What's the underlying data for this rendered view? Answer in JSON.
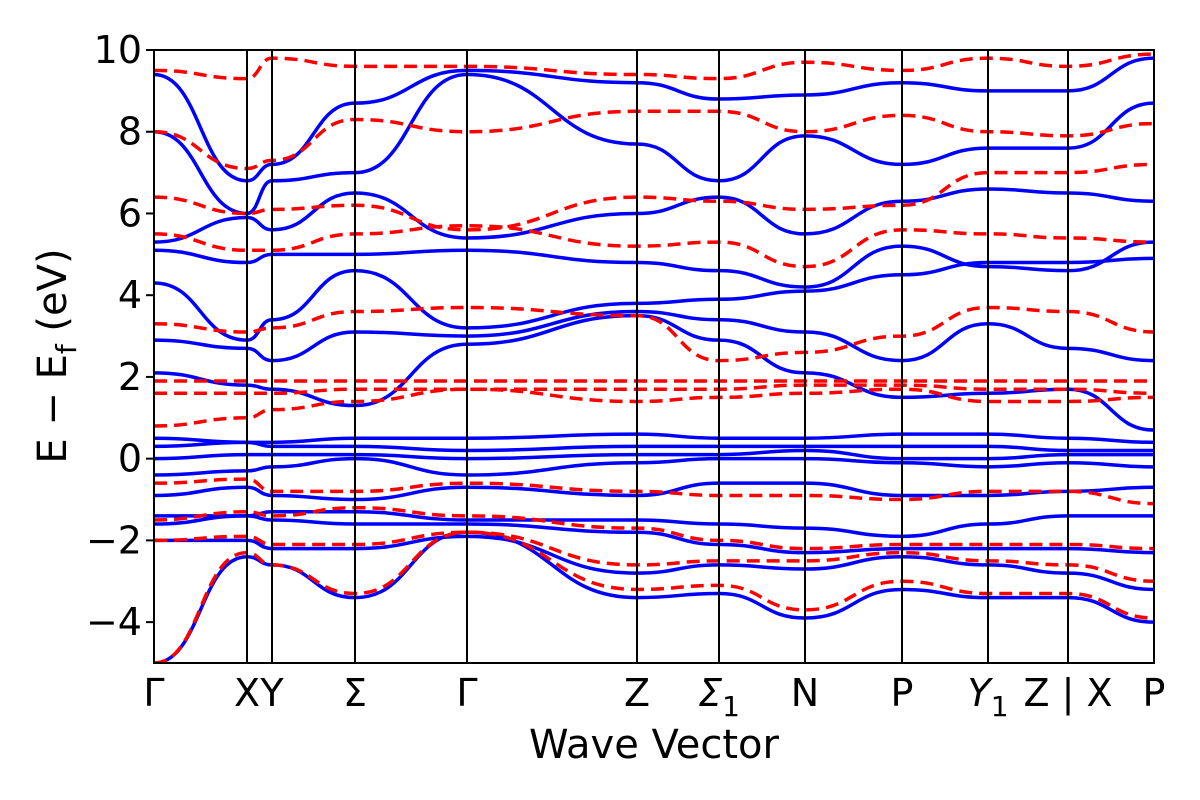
{
  "chart_data": {
    "type": "line",
    "title": "",
    "xlabel": "Wave Vector",
    "ylabel": "E − E_f (eV)",
    "ylabel_parts": {
      "main": "E − E",
      "sub": "f",
      "unit": " (eV)"
    },
    "ylim": [
      -5,
      10
    ],
    "yticks": [
      -4,
      -2,
      0,
      2,
      4,
      6,
      8,
      10
    ],
    "ytick_labels": [
      "−4",
      "−2",
      "0",
      "2",
      "4",
      "6",
      "8",
      "10"
    ],
    "xlim": [
      0,
      1
    ],
    "kpoints": [
      {
        "label": "Γ",
        "sub": "",
        "pos": 0.0
      },
      {
        "label": "X",
        "sub": "",
        "pos": 0.093
      },
      {
        "label": "Y",
        "sub": "",
        "pos": 0.118
      },
      {
        "label": "Σ",
        "sub": "",
        "pos": 0.201
      },
      {
        "label": "Γ",
        "sub": "",
        "pos": 0.313
      },
      {
        "label": "Z",
        "sub": "",
        "pos": 0.483
      },
      {
        "label": "Σ",
        "sub": "1",
        "pos": 0.565
      },
      {
        "label": "N",
        "sub": "",
        "pos": 0.651
      },
      {
        "label": "P",
        "sub": "",
        "pos": 0.748
      },
      {
        "label": "Y",
        "sub": "1",
        "pos": 0.834
      },
      {
        "label": "Z | X",
        "sub": "",
        "pos": 0.914
      },
      {
        "label": "P",
        "sub": "",
        "pos": 1.0
      }
    ],
    "grid": false,
    "series": [
      {
        "style": "solid",
        "color": "#0000ff",
        "bands": [
          {
            "x": [
              0,
              0.093,
              0.118,
              0.201,
              0.313,
              0.483,
              0.565,
              0.651,
              0.748,
              0.834,
              0.914,
              1
            ],
            "y": [
              -5,
              -2.4,
              -2.6,
              -3.4,
              -1.8,
              -3.4,
              -3.3,
              -3.9,
              -3.2,
              -3.4,
              -3.4,
              -4.0
            ]
          },
          {
            "x": [
              0,
              0.093,
              0.118,
              0.201,
              0.313,
              0.483,
              0.565,
              0.651,
              0.748,
              0.834,
              0.914,
              1
            ],
            "y": [
              -2,
              -2.0,
              -2.2,
              -2.2,
              -1.9,
              -2.8,
              -2.6,
              -2.7,
              -2.4,
              -2.6,
              -2.8,
              -3.2
            ]
          },
          {
            "x": [
              0,
              0.093,
              0.118,
              0.201,
              0.313,
              0.483,
              0.565,
              0.651,
              0.748,
              0.834,
              0.914,
              1
            ],
            "y": [
              -1.6,
              -1.4,
              -1.5,
              -1.6,
              -1.6,
              -1.8,
              -2.1,
              -2.3,
              -2.2,
              -2.2,
              -2.2,
              -2.3
            ]
          },
          {
            "x": [
              0,
              0.093,
              0.118,
              0.201,
              0.313,
              0.483,
              0.565,
              0.651,
              0.748,
              0.834,
              0.914,
              1
            ],
            "y": [
              -1.4,
              -1.4,
              -1.3,
              -1.3,
              -1.5,
              -1.5,
              -1.6,
              -1.7,
              -1.9,
              -1.6,
              -1.4,
              -1.4
            ]
          },
          {
            "x": [
              0,
              0.093,
              0.118,
              0.201,
              0.313,
              0.483,
              0.565,
              0.651,
              0.748,
              0.834,
              0.914,
              1
            ],
            "y": [
              -0.9,
              -0.7,
              -0.9,
              -1.0,
              -0.7,
              -0.9,
              -0.6,
              -0.6,
              -0.9,
              -0.9,
              -0.8,
              -0.7
            ]
          },
          {
            "x": [
              0,
              0.093,
              0.118,
              0.201,
              0.313,
              0.483,
              0.565,
              0.651,
              0.748,
              0.834,
              0.914,
              1
            ],
            "y": [
              -0.4,
              -0.3,
              -0.2,
              0.0,
              -0.4,
              -0.1,
              0.0,
              0.0,
              -0.1,
              -0.2,
              -0.1,
              -0.2
            ]
          },
          {
            "x": [
              0,
              0.093,
              0.118,
              0.201,
              0.313,
              0.483,
              0.565,
              0.651,
              0.748,
              0.834,
              0.914,
              1
            ],
            "y": [
              0.0,
              0.1,
              0.1,
              0.1,
              0.0,
              0.1,
              0.1,
              0.2,
              0.0,
              0.0,
              0.1,
              0.1
            ]
          },
          {
            "x": [
              0,
              0.093,
              0.118,
              0.201,
              0.313,
              0.483,
              0.565,
              0.651,
              0.748,
              0.834,
              0.914,
              1
            ],
            "y": [
              0.3,
              0.4,
              0.3,
              0.3,
              0.2,
              0.3,
              0.3,
              0.3,
              0.3,
              0.3,
              0.2,
              0.2
            ]
          },
          {
            "x": [
              0,
              0.093,
              0.118,
              0.201,
              0.313,
              0.483,
              0.565,
              0.651,
              0.748,
              0.834,
              0.914,
              1
            ],
            "y": [
              0.5,
              0.4,
              0.4,
              0.5,
              0.5,
              0.6,
              0.5,
              0.5,
              0.6,
              0.6,
              0.5,
              0.4
            ]
          },
          {
            "x": [
              0,
              0.093,
              0.118,
              0.201,
              0.313,
              0.483,
              0.565,
              0.651,
              0.748,
              0.834,
              0.914,
              1
            ],
            "y": [
              2.1,
              1.8,
              1.7,
              1.3,
              2.8,
              3.5,
              2.9,
              2.1,
              1.5,
              1.6,
              1.7,
              0.7
            ]
          },
          {
            "x": [
              0,
              0.093,
              0.118,
              0.201,
              0.313,
              0.483,
              0.565,
              0.651,
              0.748,
              0.834,
              0.914,
              1
            ],
            "y": [
              2.9,
              2.7,
              2.4,
              3.1,
              3.0,
              3.6,
              3.4,
              3.1,
              2.4,
              3.3,
              2.7,
              2.4
            ]
          },
          {
            "x": [
              0,
              0.093,
              0.118,
              0.201,
              0.313,
              0.483,
              0.565,
              0.651,
              0.748,
              0.834,
              0.914,
              1
            ],
            "y": [
              4.3,
              2.9,
              3.4,
              4.6,
              3.2,
              3.8,
              3.9,
              4.1,
              4.5,
              4.8,
              4.8,
              4.9
            ]
          },
          {
            "x": [
              0,
              0.093,
              0.118,
              0.201,
              0.313,
              0.483,
              0.565,
              0.651,
              0.748,
              0.834,
              0.914,
              1
            ],
            "y": [
              5.1,
              4.8,
              5.0,
              5.0,
              5.1,
              4.8,
              4.6,
              4.2,
              5.2,
              4.7,
              4.6,
              5.3
            ]
          },
          {
            "x": [
              0,
              0.093,
              0.118,
              0.201,
              0.313,
              0.483,
              0.565,
              0.651,
              0.748,
              0.834,
              0.914,
              1
            ],
            "y": [
              5.3,
              5.9,
              5.6,
              6.5,
              5.4,
              6.0,
              6.4,
              5.5,
              6.3,
              6.6,
              6.5,
              6.3
            ]
          },
          {
            "x": [
              0,
              0.093,
              0.118,
              0.201,
              0.313,
              0.483,
              0.565,
              0.651,
              0.748,
              0.834,
              0.914,
              1
            ],
            "y": [
              8.0,
              6.0,
              6.8,
              7.0,
              9.4,
              7.7,
              6.8,
              7.9,
              7.2,
              7.6,
              7.6,
              8.7
            ]
          },
          {
            "x": [
              0,
              0.093,
              0.118,
              0.201,
              0.313,
              0.483,
              0.565,
              0.651,
              0.748,
              0.834,
              0.914,
              1
            ],
            "y": [
              9.4,
              6.8,
              7.2,
              8.7,
              9.5,
              9.2,
              8.8,
              8.9,
              9.2,
              9.0,
              9.0,
              9.8
            ]
          }
        ]
      },
      {
        "style": "dashed",
        "color": "#ff0000",
        "bands": [
          {
            "x": [
              0,
              0.093,
              0.118,
              0.201,
              0.313,
              0.483,
              0.565,
              0.651,
              0.748,
              0.834,
              0.914,
              1
            ],
            "y": [
              -5,
              -2.3,
              -2.6,
              -3.3,
              -1.8,
              -3.2,
              -3.1,
              -3.7,
              -3.0,
              -3.3,
              -3.3,
              -3.9
            ]
          },
          {
            "x": [
              0,
              0.093,
              0.118,
              0.201,
              0.313,
              0.483,
              0.565,
              0.651,
              0.748,
              0.834,
              0.914,
              1
            ],
            "y": [
              -2,
              -1.9,
              -2.1,
              -2.1,
              -1.8,
              -2.6,
              -2.5,
              -2.5,
              -2.3,
              -2.5,
              -2.6,
              -3.0
            ]
          },
          {
            "x": [
              0,
              0.093,
              0.118,
              0.201,
              0.313,
              0.483,
              0.565,
              0.651,
              0.748,
              0.834,
              0.914,
              1
            ],
            "y": [
              -1.5,
              -1.3,
              -1.4,
              -1.2,
              -1.4,
              -1.7,
              -2.0,
              -2.2,
              -2.1,
              -2.1,
              -2.1,
              -2.2
            ]
          },
          {
            "x": [
              0,
              0.093,
              0.118,
              0.201,
              0.313,
              0.483,
              0.565,
              0.651,
              0.748,
              0.834,
              0.914,
              1
            ],
            "y": [
              -0.6,
              -0.5,
              -0.8,
              -0.8,
              -0.6,
              -0.8,
              -0.9,
              -0.9,
              -1.0,
              -0.8,
              -0.8,
              -1.1
            ]
          },
          {
            "x": [
              0,
              0.093,
              0.118,
              0.201,
              0.313,
              0.483,
              0.565,
              0.651,
              0.748,
              0.834,
              0.914,
              1
            ],
            "y": [
              0.8,
              1.0,
              1.2,
              1.4,
              1.7,
              1.4,
              1.5,
              1.6,
              1.7,
              1.4,
              1.4,
              1.5
            ]
          },
          {
            "x": [
              0,
              0.093,
              0.118,
              0.201,
              0.313,
              0.483,
              0.565,
              0.651,
              0.748,
              0.834,
              0.914,
              1
            ],
            "y": [
              1.6,
              1.6,
              1.6,
              1.7,
              1.7,
              1.7,
              1.7,
              1.8,
              1.8,
              1.7,
              1.7,
              1.6
            ]
          },
          {
            "x": [
              0,
              0.093,
              0.118,
              0.201,
              0.313,
              0.483,
              0.565,
              0.651,
              0.748,
              0.834,
              0.914,
              1
            ],
            "y": [
              1.9,
              1.9,
              1.9,
              1.9,
              1.9,
              1.9,
              1.9,
              1.9,
              1.9,
              1.9,
              1.9,
              1.9
            ]
          },
          {
            "x": [
              0,
              0.093,
              0.118,
              0.201,
              0.313,
              0.483,
              0.565,
              0.651,
              0.748,
              0.834,
              0.914,
              1
            ],
            "y": [
              3.3,
              3.1,
              3.2,
              3.6,
              3.7,
              3.5,
              2.4,
              2.6,
              3.0,
              3.7,
              3.6,
              3.1
            ]
          },
          {
            "x": [
              0,
              0.093,
              0.118,
              0.201,
              0.313,
              0.483,
              0.565,
              0.651,
              0.748,
              0.834,
              0.914,
              1
            ],
            "y": [
              5.5,
              5.1,
              5.1,
              5.5,
              5.7,
              5.2,
              5.3,
              4.7,
              5.6,
              5.5,
              5.4,
              5.3
            ]
          },
          {
            "x": [
              0,
              0.093,
              0.118,
              0.201,
              0.313,
              0.483,
              0.565,
              0.651,
              0.748,
              0.834,
              0.914,
              1
            ],
            "y": [
              6.4,
              6.0,
              6.1,
              6.2,
              5.6,
              6.4,
              6.3,
              6.1,
              6.2,
              7.0,
              7.0,
              7.2
            ]
          },
          {
            "x": [
              0,
              0.093,
              0.118,
              0.201,
              0.313,
              0.483,
              0.565,
              0.651,
              0.748,
              0.834,
              0.914,
              1
            ],
            "y": [
              8.0,
              7.1,
              7.3,
              8.3,
              8.0,
              8.5,
              8.5,
              8.0,
              8.4,
              8.0,
              7.9,
              8.2
            ]
          },
          {
            "x": [
              0,
              0.093,
              0.118,
              0.201,
              0.313,
              0.483,
              0.565,
              0.651,
              0.748,
              0.834,
              0.914,
              1
            ],
            "y": [
              9.5,
              9.3,
              9.8,
              9.6,
              9.6,
              9.4,
              9.3,
              9.7,
              9.5,
              9.8,
              9.6,
              9.9
            ]
          }
        ]
      }
    ]
  }
}
